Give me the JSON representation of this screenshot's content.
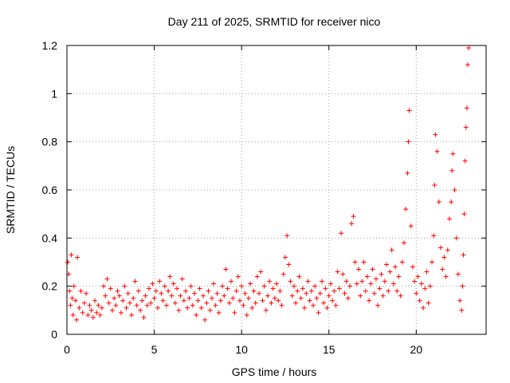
{
  "chart_data": {
    "type": "scatter",
    "title": "Day 211 of 2025, SRMTID for receiver nico",
    "xlabel": "GPS time / hours",
    "ylabel": "SRMTID / TECUs",
    "xlim": [
      0,
      24
    ],
    "ylim": [
      0,
      1.2
    ],
    "xticks": [
      0,
      5,
      10,
      15,
      20
    ],
    "xtick_labels": [
      "0",
      "5",
      "10",
      "15",
      "20"
    ],
    "yticks": [
      0,
      0.2,
      0.4,
      0.6,
      0.8,
      1.0,
      1.2
    ],
    "ytick_labels": [
      "0",
      "0.2",
      "0.4",
      "0.6",
      "0.8",
      "1",
      "1.2"
    ],
    "grid": true,
    "marker": "+",
    "color": "#ff0000",
    "series": [
      {
        "name": "SRMTID",
        "points": [
          [
            0.05,
            0.3
          ],
          [
            0.1,
            0.25
          ],
          [
            0.15,
            0.18
          ],
          [
            0.2,
            0.12
          ],
          [
            0.25,
            0.33
          ],
          [
            0.3,
            0.15
          ],
          [
            0.35,
            0.08
          ],
          [
            0.4,
            0.2
          ],
          [
            0.5,
            0.14
          ],
          [
            0.55,
            0.06
          ],
          [
            0.6,
            0.32
          ],
          [
            0.7,
            0.11
          ],
          [
            0.8,
            0.18
          ],
          [
            0.9,
            0.09
          ],
          [
            1.0,
            0.13
          ],
          [
            1.1,
            0.17
          ],
          [
            1.2,
            0.08
          ],
          [
            1.3,
            0.12
          ],
          [
            1.4,
            0.1
          ],
          [
            1.5,
            0.07
          ],
          [
            1.6,
            0.14
          ],
          [
            1.7,
            0.09
          ],
          [
            1.8,
            0.12
          ],
          [
            1.9,
            0.08
          ],
          [
            2.0,
            0.11
          ],
          [
            2.1,
            0.2
          ],
          [
            2.2,
            0.16
          ],
          [
            2.3,
            0.23
          ],
          [
            2.4,
            0.13
          ],
          [
            2.5,
            0.19
          ],
          [
            2.6,
            0.1
          ],
          [
            2.7,
            0.15
          ],
          [
            2.8,
            0.12
          ],
          [
            2.9,
            0.18
          ],
          [
            3.0,
            0.16
          ],
          [
            3.1,
            0.09
          ],
          [
            3.2,
            0.14
          ],
          [
            3.3,
            0.2
          ],
          [
            3.4,
            0.11
          ],
          [
            3.5,
            0.17
          ],
          [
            3.6,
            0.13
          ],
          [
            3.7,
            0.08
          ],
          [
            3.8,
            0.15
          ],
          [
            3.9,
            0.22
          ],
          [
            4.0,
            0.12
          ],
          [
            4.1,
            0.18
          ],
          [
            4.2,
            0.1
          ],
          [
            4.3,
            0.14
          ],
          [
            4.4,
            0.07
          ],
          [
            4.5,
            0.16
          ],
          [
            4.6,
            0.12
          ],
          [
            4.7,
            0.19
          ],
          [
            4.8,
            0.13
          ],
          [
            4.9,
            0.21
          ],
          [
            5.0,
            0.15
          ],
          [
            5.1,
            0.18
          ],
          [
            5.2,
            0.11
          ],
          [
            5.3,
            0.22
          ],
          [
            5.4,
            0.17
          ],
          [
            5.5,
            0.14
          ],
          [
            5.6,
            0.2
          ],
          [
            5.7,
            0.12
          ],
          [
            5.8,
            0.18
          ],
          [
            5.9,
            0.24
          ],
          [
            6.0,
            0.16
          ],
          [
            6.1,
            0.21
          ],
          [
            6.2,
            0.13
          ],
          [
            6.3,
            0.19
          ],
          [
            6.4,
            0.1
          ],
          [
            6.5,
            0.16
          ],
          [
            6.6,
            0.23
          ],
          [
            6.7,
            0.14
          ],
          [
            6.8,
            0.18
          ],
          [
            6.9,
            0.11
          ],
          [
            7.0,
            0.15
          ],
          [
            7.1,
            0.2
          ],
          [
            7.2,
            0.12
          ],
          [
            7.3,
            0.17
          ],
          [
            7.4,
            0.08
          ],
          [
            7.5,
            0.14
          ],
          [
            7.6,
            0.19
          ],
          [
            7.7,
            0.11
          ],
          [
            7.8,
            0.16
          ],
          [
            7.9,
            0.06
          ],
          [
            8.0,
            0.13
          ],
          [
            8.1,
            0.18
          ],
          [
            8.2,
            0.1
          ],
          [
            8.3,
            0.15
          ],
          [
            8.4,
            0.21
          ],
          [
            8.5,
            0.12
          ],
          [
            8.6,
            0.17
          ],
          [
            8.7,
            0.09
          ],
          [
            8.8,
            0.14
          ],
          [
            8.9,
            0.2
          ],
          [
            9.0,
            0.16
          ],
          [
            9.1,
            0.27
          ],
          [
            9.2,
            0.19
          ],
          [
            9.3,
            0.13
          ],
          [
            9.4,
            0.22
          ],
          [
            9.5,
            0.15
          ],
          [
            9.6,
            0.09
          ],
          [
            9.7,
            0.18
          ],
          [
            9.8,
            0.24
          ],
          [
            9.9,
            0.14
          ],
          [
            10.0,
            0.2
          ],
          [
            10.1,
            0.12
          ],
          [
            10.2,
            0.17
          ],
          [
            10.3,
            0.08
          ],
          [
            10.4,
            0.15
          ],
          [
            10.5,
            0.21
          ],
          [
            10.6,
            0.11
          ],
          [
            10.7,
            0.18
          ],
          [
            10.8,
            0.13
          ],
          [
            10.9,
            0.24
          ],
          [
            11.0,
            0.17
          ],
          [
            11.1,
            0.26
          ],
          [
            11.2,
            0.14
          ],
          [
            11.3,
            0.2
          ],
          [
            11.4,
            0.1
          ],
          [
            11.5,
            0.16
          ],
          [
            11.6,
            0.22
          ],
          [
            11.7,
            0.13
          ],
          [
            11.8,
            0.19
          ],
          [
            11.9,
            0.15
          ],
          [
            12.0,
            0.21
          ],
          [
            12.1,
            0.14
          ],
          [
            12.2,
            0.18
          ],
          [
            12.3,
            0.12
          ],
          [
            12.4,
            0.25
          ],
          [
            12.5,
            0.32
          ],
          [
            12.6,
            0.41
          ],
          [
            12.7,
            0.29
          ],
          [
            12.8,
            0.22
          ],
          [
            12.9,
            0.16
          ],
          [
            13.0,
            0.2
          ],
          [
            13.1,
            0.13
          ],
          [
            13.2,
            0.18
          ],
          [
            13.3,
            0.24
          ],
          [
            13.4,
            0.15
          ],
          [
            13.5,
            0.19
          ],
          [
            13.6,
            0.11
          ],
          [
            13.7,
            0.17
          ],
          [
            13.8,
            0.22
          ],
          [
            13.9,
            0.14
          ],
          [
            14.0,
            0.18
          ],
          [
            14.1,
            0.12
          ],
          [
            14.2,
            0.2
          ],
          [
            14.3,
            0.15
          ],
          [
            14.4,
            0.09
          ],
          [
            14.5,
            0.17
          ],
          [
            14.6,
            0.22
          ],
          [
            14.7,
            0.13
          ],
          [
            14.8,
            0.19
          ],
          [
            14.9,
            0.11
          ],
          [
            15.0,
            0.16
          ],
          [
            15.1,
            0.21
          ],
          [
            15.2,
            0.14
          ],
          [
            15.3,
            0.18
          ],
          [
            15.4,
            0.12
          ],
          [
            15.5,
            0.26
          ],
          [
            15.6,
            0.19
          ],
          [
            15.7,
            0.42
          ],
          [
            15.8,
            0.25
          ],
          [
            15.9,
            0.17
          ],
          [
            16.0,
            0.22
          ],
          [
            16.1,
            0.15
          ],
          [
            16.2,
            0.2
          ],
          [
            16.3,
            0.46
          ],
          [
            16.4,
            0.49
          ],
          [
            16.5,
            0.3
          ],
          [
            16.6,
            0.21
          ],
          [
            16.7,
            0.27
          ],
          [
            16.8,
            0.16
          ],
          [
            16.9,
            0.22
          ],
          [
            17.0,
            0.3
          ],
          [
            17.1,
            0.18
          ],
          [
            17.2,
            0.24
          ],
          [
            17.3,
            0.14
          ],
          [
            17.4,
            0.21
          ],
          [
            17.5,
            0.27
          ],
          [
            17.6,
            0.17
          ],
          [
            17.7,
            0.23
          ],
          [
            17.8,
            0.12
          ],
          [
            17.9,
            0.19
          ],
          [
            18.0,
            0.25
          ],
          [
            18.1,
            0.16
          ],
          [
            18.2,
            0.22
          ],
          [
            18.3,
            0.29
          ],
          [
            18.4,
            0.18
          ],
          [
            18.5,
            0.26
          ],
          [
            18.6,
            0.35
          ],
          [
            18.7,
            0.21
          ],
          [
            18.8,
            0.28
          ],
          [
            18.9,
            0.18
          ],
          [
            19.0,
            0.24
          ],
          [
            19.1,
            0.16
          ],
          [
            19.2,
            0.3
          ],
          [
            19.3,
            0.38
          ],
          [
            19.4,
            0.52
          ],
          [
            19.5,
            0.67
          ],
          [
            19.55,
            0.8
          ],
          [
            19.6,
            0.93
          ],
          [
            19.7,
            0.45
          ],
          [
            19.8,
            0.28
          ],
          [
            19.9,
            0.22
          ],
          [
            20.0,
            0.17
          ],
          [
            20.1,
            0.24
          ],
          [
            20.2,
            0.14
          ],
          [
            20.3,
            0.21
          ],
          [
            20.4,
            0.11
          ],
          [
            20.5,
            0.19
          ],
          [
            20.6,
            0.26
          ],
          [
            20.7,
            0.13
          ],
          [
            20.8,
            0.2
          ],
          [
            20.9,
            0.3
          ],
          [
            21.0,
            0.41
          ],
          [
            21.05,
            0.62
          ],
          [
            21.1,
            0.83
          ],
          [
            21.2,
            0.76
          ],
          [
            21.3,
            0.55
          ],
          [
            21.4,
            0.36
          ],
          [
            21.5,
            0.27
          ],
          [
            21.6,
            0.32
          ],
          [
            21.7,
            0.24
          ],
          [
            21.8,
            0.35
          ],
          [
            21.9,
            0.48
          ],
          [
            22.0,
            0.55
          ],
          [
            22.05,
            0.68
          ],
          [
            22.1,
            0.75
          ],
          [
            22.2,
            0.6
          ],
          [
            22.3,
            0.4
          ],
          [
            22.4,
            0.25
          ],
          [
            22.5,
            0.14
          ],
          [
            22.6,
            0.1
          ],
          [
            22.65,
            0.2
          ],
          [
            22.7,
            0.33
          ],
          [
            22.75,
            0.5
          ],
          [
            22.8,
            0.72
          ],
          [
            22.85,
            0.86
          ],
          [
            22.9,
            0.94
          ],
          [
            22.95,
            1.12
          ],
          [
            23.0,
            1.19
          ]
        ]
      }
    ]
  }
}
